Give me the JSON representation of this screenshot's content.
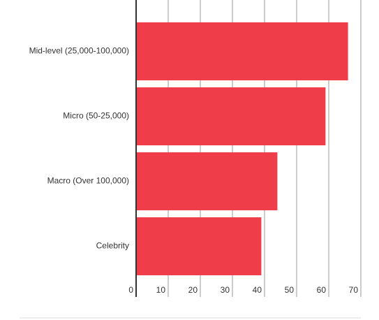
{
  "chart_data": {
    "type": "hbar",
    "categories": [
      "Mid-level (25,000-100,000)",
      "Micro (50-25,000)",
      "Macro (Over 100,000)",
      "Celebrity"
    ],
    "values": [
      66,
      59,
      44,
      39
    ],
    "color": "#ef3e4a",
    "xlim": [
      0,
      70
    ],
    "xticks": [
      0,
      10,
      20,
      30,
      40,
      50,
      60,
      70
    ],
    "grid": true
  }
}
